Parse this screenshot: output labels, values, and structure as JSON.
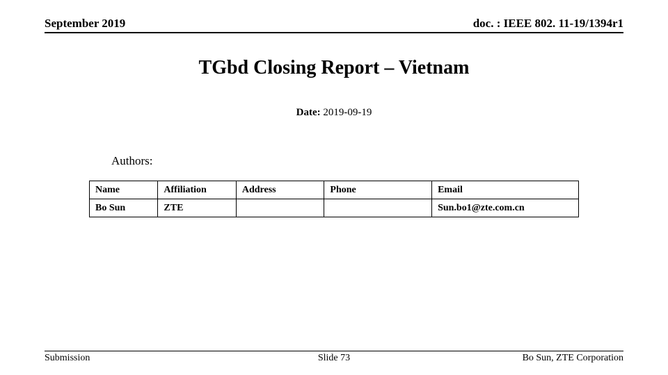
{
  "header": {
    "left": "September 2019",
    "right": "doc. : IEEE 802. 11-19/1394r1"
  },
  "title": "TGbd Closing Report – Vietnam",
  "date": {
    "label": "Date:",
    "value": " 2019-09-19"
  },
  "authors_label": "Authors:",
  "authors_table": {
    "columns": [
      "Name",
      "Affiliation",
      "Address",
      "Phone",
      "Email"
    ],
    "rows": [
      {
        "name": "Bo Sun",
        "affiliation": "ZTE",
        "address": "",
        "phone": "",
        "email": "Sun.bo1@zte.com.cn"
      }
    ]
  },
  "footer": {
    "left": "Submission",
    "center": "Slide 73",
    "right": "Bo Sun, ZTE Corporation"
  },
  "colors": {
    "background": "#ffffff",
    "text": "#000000",
    "border": "#000000"
  }
}
